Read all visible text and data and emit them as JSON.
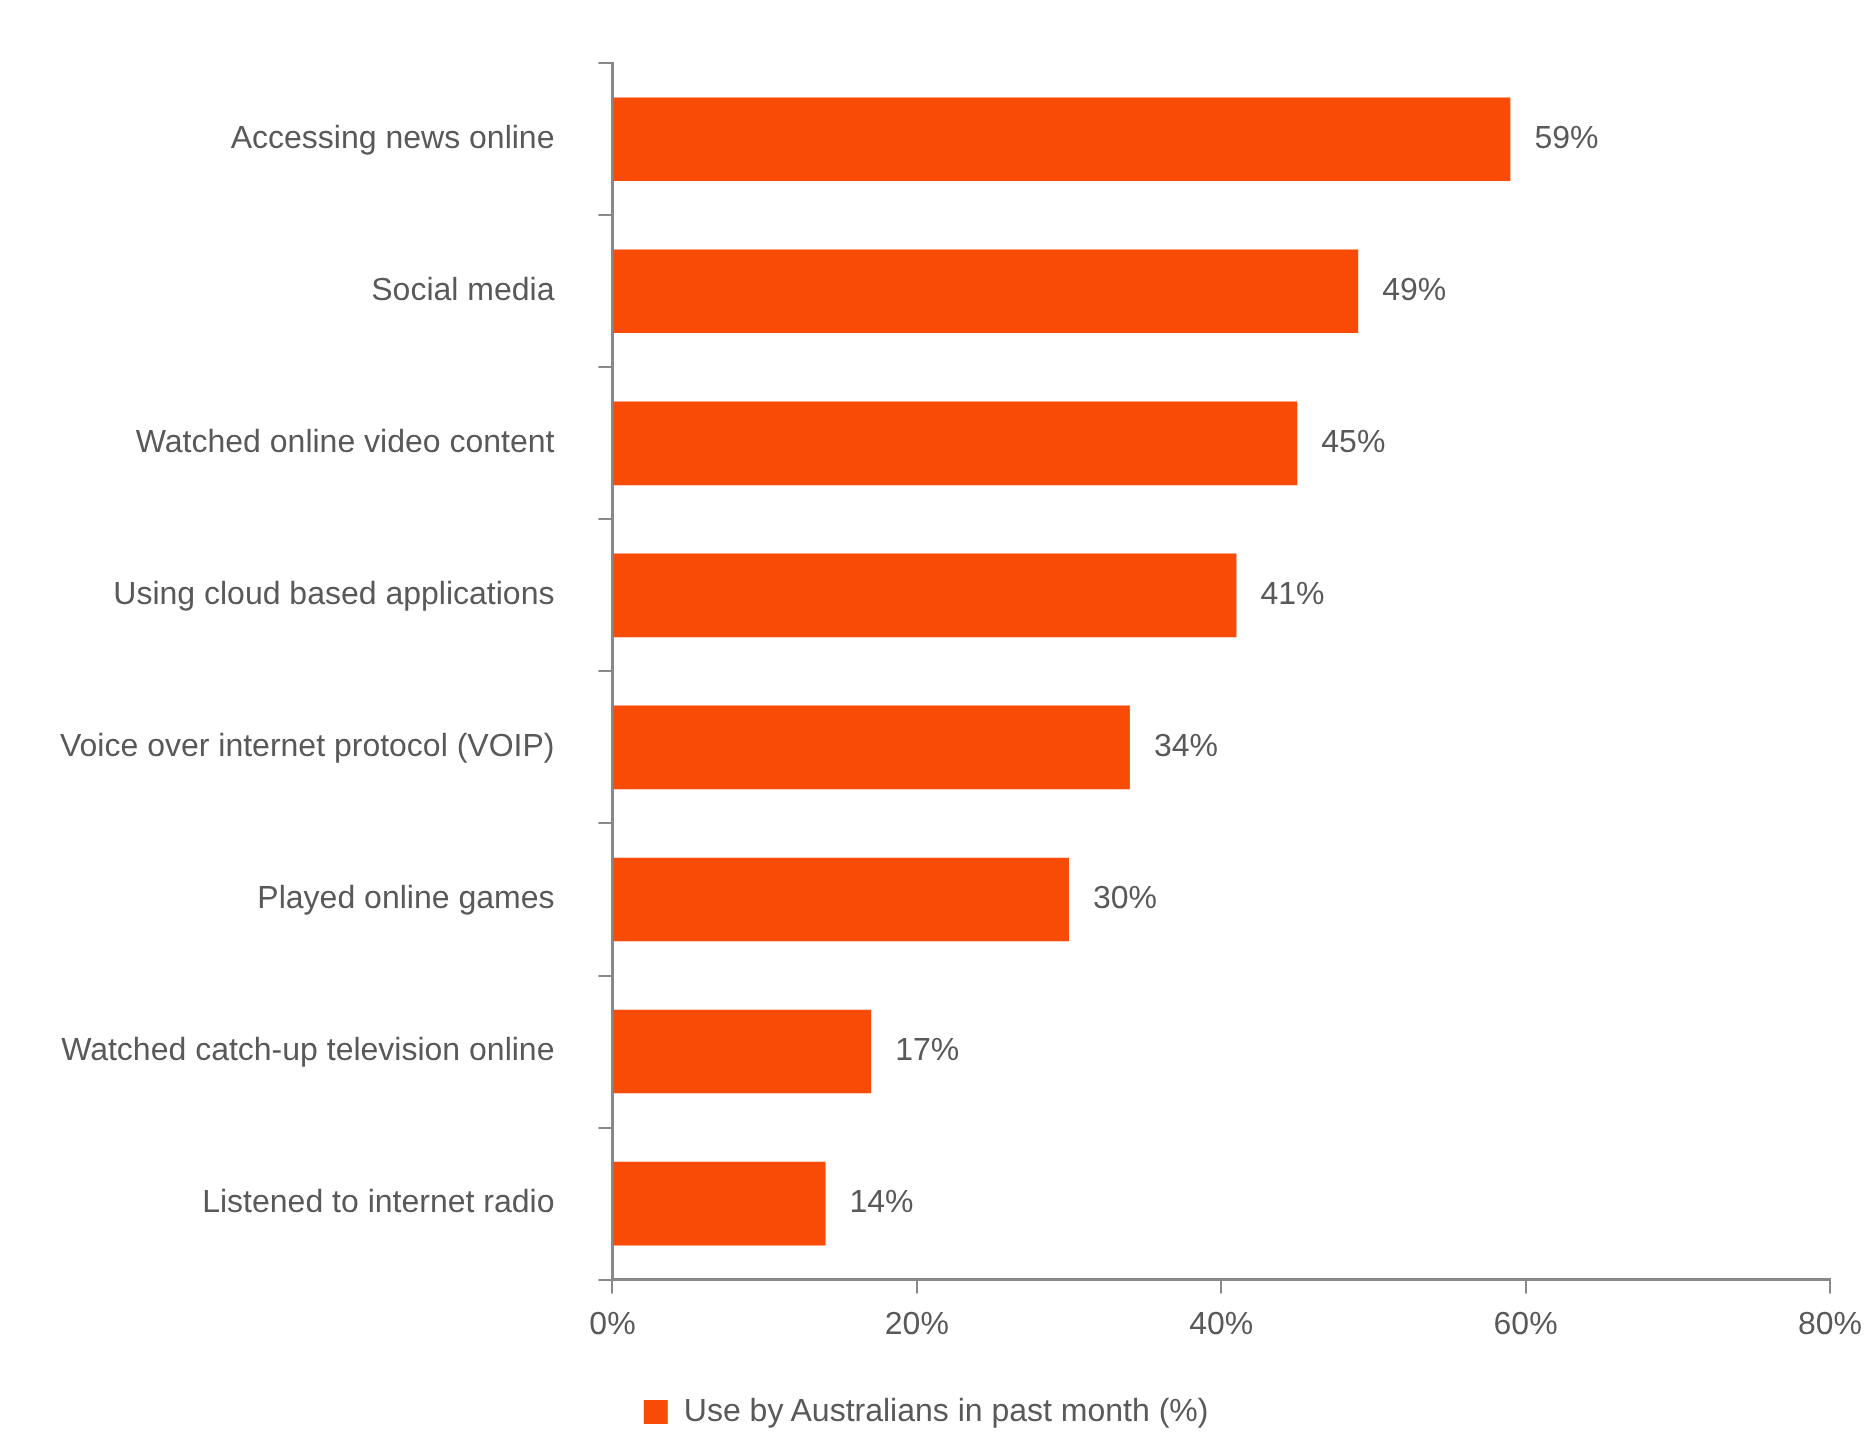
{
  "chart_data": {
    "type": "bar",
    "orientation": "horizontal",
    "categories": [
      "Accessing news online",
      "Social media",
      "Watched online video content",
      "Using cloud based applications",
      "Voice over internet protocol (VOIP)",
      "Played online games",
      "Watched catch-up television online",
      "Listened to internet radio"
    ],
    "series": [
      {
        "name": "Use by Australians in past month (%)",
        "color": "#f94b06",
        "values": [
          59,
          49,
          45,
          41,
          34,
          30,
          17,
          14
        ],
        "value_labels": [
          "59%",
          "49%",
          "45%",
          "41%",
          "34%",
          "30%",
          "17%",
          "14%"
        ]
      }
    ],
    "xlim": [
      0,
      80
    ],
    "xticks": [
      {
        "value": 0,
        "label": "0%"
      },
      {
        "value": 20,
        "label": "20%"
      },
      {
        "value": 40,
        "label": "40%"
      },
      {
        "value": 60,
        "label": "60%"
      },
      {
        "value": 80,
        "label": "80%"
      }
    ],
    "grid": false,
    "legend": "bottom"
  }
}
